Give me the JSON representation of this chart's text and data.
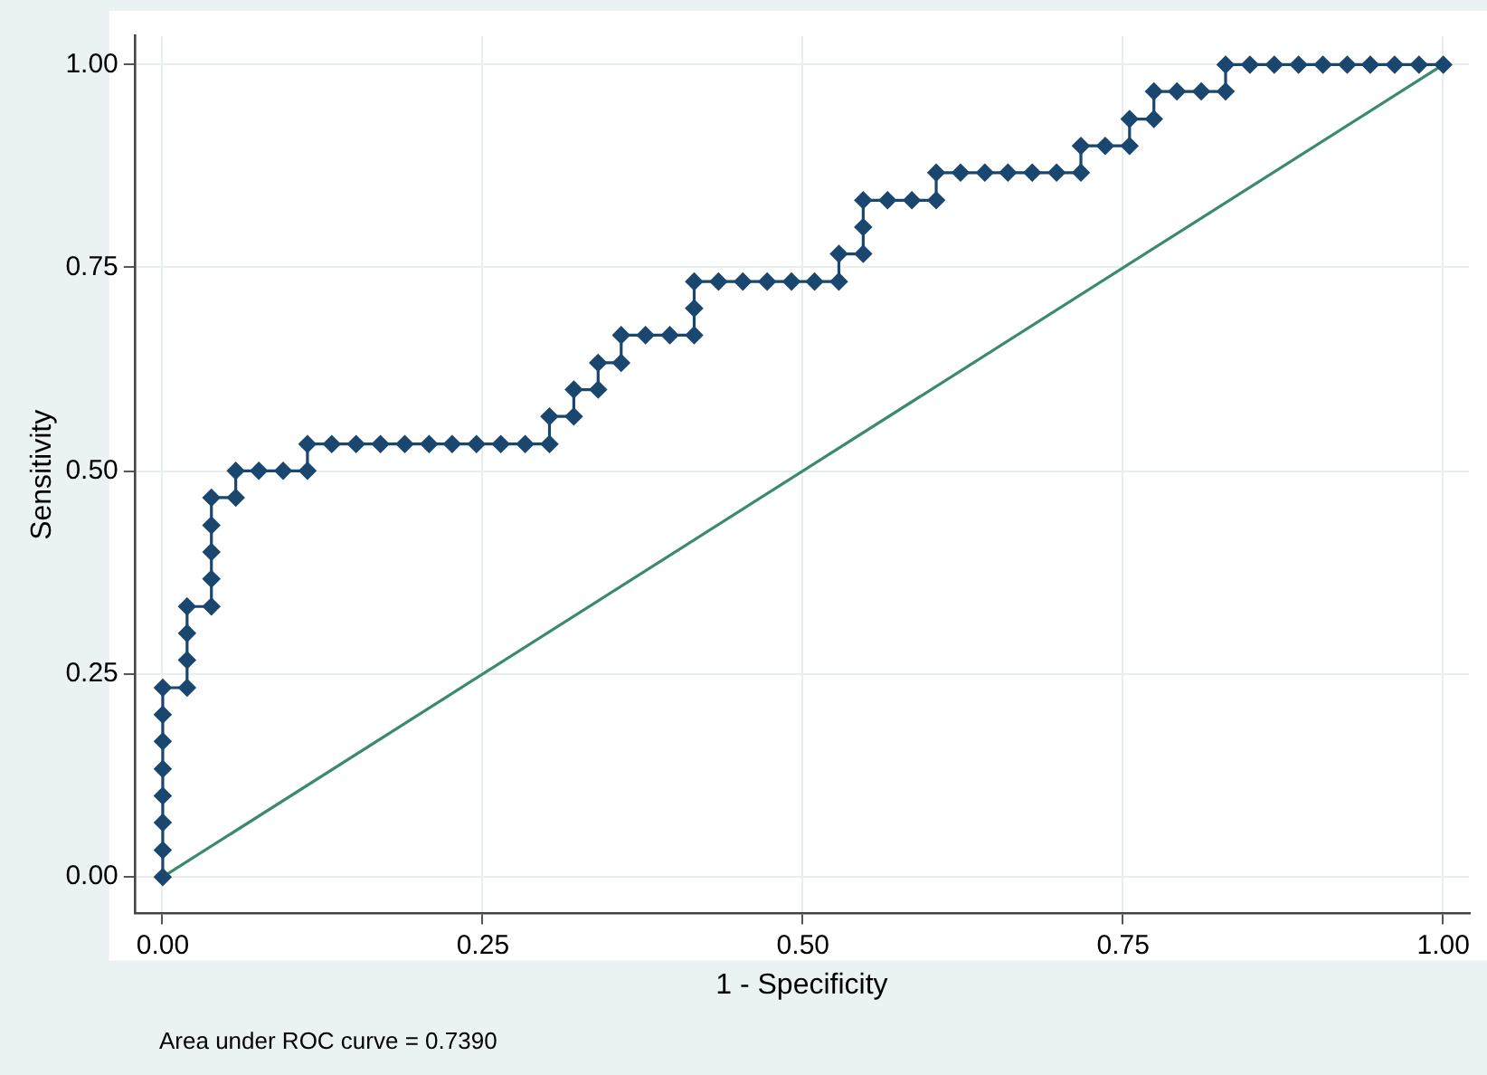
{
  "chart_data": {
    "type": "line",
    "xlabel": "1 - Specificity",
    "ylabel": "Sensitivity",
    "annotations": [
      "Area under ROC curve = 0.7390"
    ],
    "xlim": [
      -0.022,
      1.02
    ],
    "ylim": [
      -0.045,
      1.035
    ],
    "xticks": [
      {
        "value": 0,
        "label": "0.00"
      },
      {
        "value": 0.25,
        "label": "0.25"
      },
      {
        "value": 0.5,
        "label": "0.50"
      },
      {
        "value": 0.75,
        "label": "0.75"
      },
      {
        "value": 1,
        "label": "1.00"
      }
    ],
    "yticks": [
      {
        "value": 0,
        "label": "0.00"
      },
      {
        "value": 0.25,
        "label": "0.25"
      },
      {
        "value": 0.5,
        "label": "0.50"
      },
      {
        "value": 0.75,
        "label": "0.75"
      },
      {
        "value": 1,
        "label": "1.00"
      }
    ],
    "grid": true,
    "legend": false,
    "series": [
      {
        "color": "#1a476f",
        "marker": "diamond",
        "x": [
          0,
          0,
          0,
          0,
          0,
          0,
          0,
          0,
          0.019,
          0.019,
          0.019,
          0.019,
          0.038,
          0.038,
          0.038,
          0.038,
          0.038,
          0.057,
          0.057,
          0.075,
          0.094,
          0.113,
          0.113,
          0.132,
          0.151,
          0.17,
          0.189,
          0.208,
          0.226,
          0.245,
          0.264,
          0.283,
          0.302,
          0.302,
          0.321,
          0.321,
          0.34,
          0.34,
          0.358,
          0.358,
          0.377,
          0.396,
          0.415,
          0.415,
          0.415,
          0.434,
          0.453,
          0.472,
          0.491,
          0.509,
          0.528,
          0.528,
          0.547,
          0.547,
          0.547,
          0.566,
          0.585,
          0.604,
          0.604,
          0.623,
          0.642,
          0.66,
          0.679,
          0.698,
          0.717,
          0.717,
          0.736,
          0.755,
          0.755,
          0.774,
          0.774,
          0.792,
          0.811,
          0.83,
          0.83,
          0.849,
          0.868,
          0.887,
          0.906,
          0.925,
          0.943,
          0.962,
          0.981,
          1
        ],
        "values": [
          0,
          0.033,
          0.067,
          0.1,
          0.133,
          0.167,
          0.2,
          0.233,
          0.233,
          0.267,
          0.3,
          0.333,
          0.333,
          0.367,
          0.4,
          0.433,
          0.467,
          0.467,
          0.5,
          0.5,
          0.5,
          0.5,
          0.533,
          0.533,
          0.533,
          0.533,
          0.533,
          0.533,
          0.533,
          0.533,
          0.533,
          0.533,
          0.533,
          0.567,
          0.567,
          0.6,
          0.6,
          0.633,
          0.633,
          0.667,
          0.667,
          0.667,
          0.667,
          0.7,
          0.733,
          0.733,
          0.733,
          0.733,
          0.733,
          0.733,
          0.733,
          0.767,
          0.767,
          0.8,
          0.833,
          0.833,
          0.833,
          0.833,
          0.867,
          0.867,
          0.867,
          0.867,
          0.867,
          0.867,
          0.867,
          0.9,
          0.9,
          0.9,
          0.933,
          0.933,
          0.967,
          0.967,
          0.967,
          0.967,
          1,
          1,
          1,
          1,
          1,
          1,
          1,
          1,
          1,
          1
        ]
      },
      {
        "color": "#3a8a70",
        "marker": "none",
        "x": [
          0,
          1
        ],
        "values": [
          0,
          1
        ]
      }
    ]
  }
}
